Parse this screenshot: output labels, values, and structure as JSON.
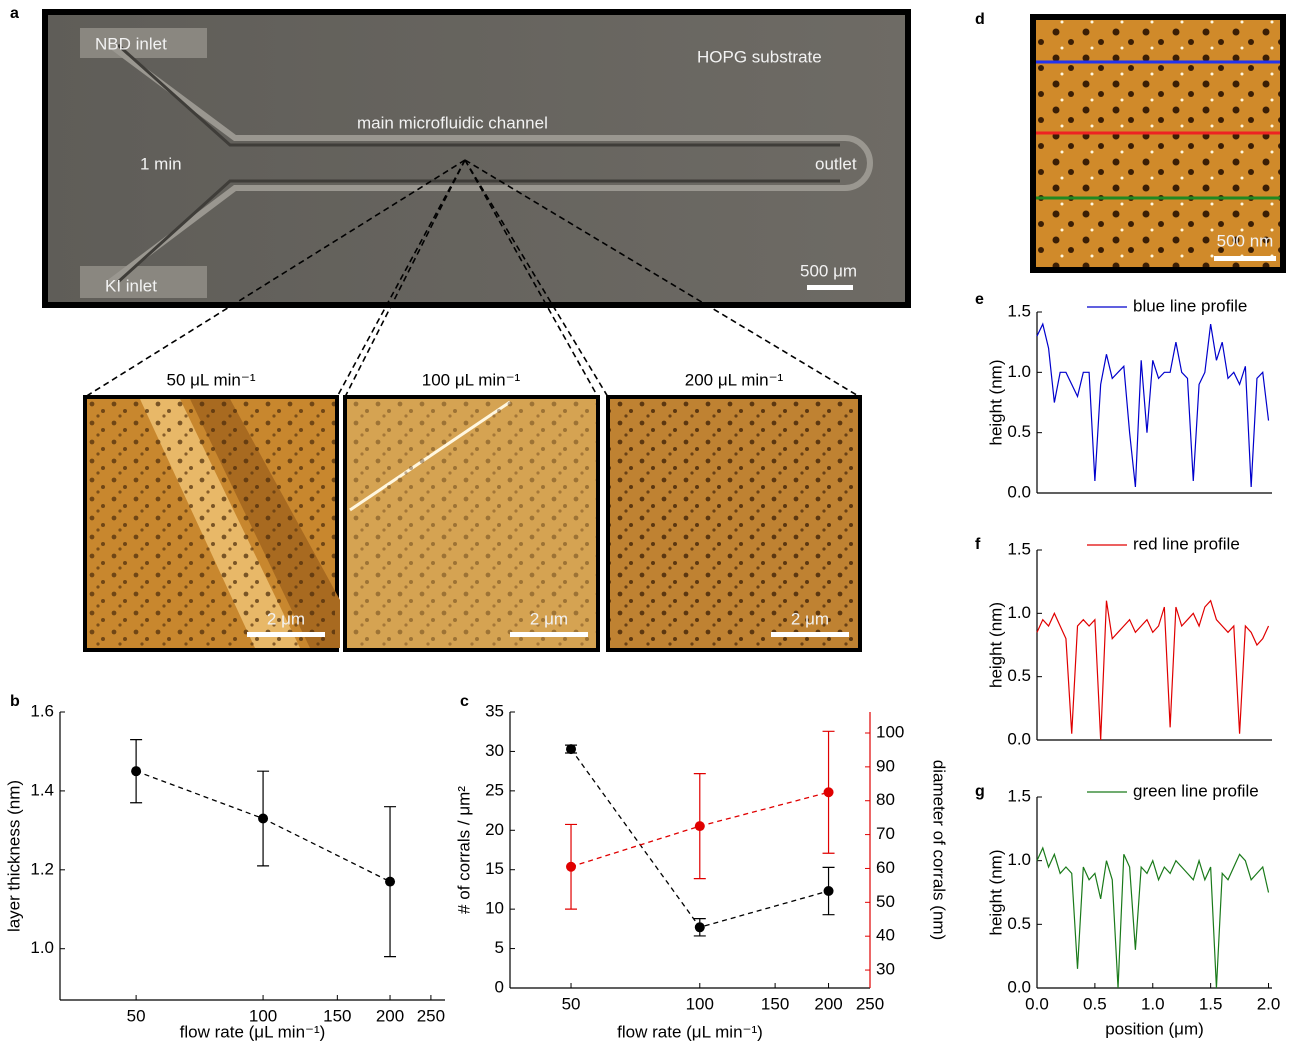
{
  "panels": {
    "letters": [
      "a",
      "b",
      "c",
      "d",
      "e",
      "f",
      "g"
    ],
    "a": {
      "nbd_inlet": "NBD inlet",
      "ki_inlet": "KI inlet",
      "substrate": "HOPG substrate",
      "channel": "main microfluidic channel",
      "time": "1 min",
      "outlet": "outlet",
      "scale": "500 μm"
    },
    "afm": [
      {
        "title": "50 μL min⁻¹",
        "scale": "2 μm"
      },
      {
        "title": "100 μL min⁻¹",
        "scale": "2 μm"
      },
      {
        "title": "200 μL min⁻¹",
        "scale": "2 μm"
      }
    ],
    "d": {
      "scale": "500 nm"
    }
  },
  "chart_data": [
    {
      "type": "line",
      "xlabel": "flow rate (μL min⁻¹)",
      "ylabel": "layer thickness (nm)",
      "xlog": true,
      "xlim": [
        33,
        270
      ],
      "xticks": [
        50,
        100,
        150,
        200,
        250
      ],
      "ylim": [
        0.87,
        1.6
      ],
      "yticks": [
        {
          "value": 1,
          "label": "1.0"
        },
        {
          "value": 1.2,
          "label": "1.2"
        },
        {
          "value": 1.4,
          "label": "1.4"
        },
        {
          "value": 1.6,
          "label": "1.6"
        }
      ],
      "x": [
        50,
        100,
        200
      ],
      "series": [
        {
          "color": "#000000",
          "values": [
            1.45,
            1.33,
            1.17
          ],
          "errors": [
            0.08,
            0.12,
            0.19
          ]
        }
      ]
    },
    {
      "type": "line",
      "xlabel": "flow rate (μL min⁻¹)",
      "ylabel": "# of corrals / μm²",
      "y2label": "diameter of corrals (nm)",
      "xlog": true,
      "xlim": [
        36,
        250
      ],
      "xticks": [
        50,
        100,
        150,
        200,
        250
      ],
      "ylim": [
        0,
        35
      ],
      "yticks": [
        0,
        5,
        10,
        15,
        20,
        25,
        30,
        35
      ],
      "y2lim": [
        24.7,
        106.2
      ],
      "y2ticks": [
        30,
        40,
        50,
        60,
        70,
        80,
        90,
        100
      ],
      "y2color": "#e00000",
      "x": [
        50,
        100,
        200
      ],
      "series": [
        {
          "color": "#000000",
          "values": [
            30.3,
            7.7,
            12.3
          ],
          "errors": [
            0.5,
            1.1,
            3.0
          ]
        },
        {
          "color": "#e00000",
          "axis": "y2",
          "values": [
            60.5,
            72.5,
            82.5
          ],
          "errors": [
            12.5,
            15.5,
            18
          ]
        }
      ]
    },
    {
      "type": "line",
      "ylabel": "height (nm)",
      "xlim": [
        0,
        2.03
      ],
      "ylim": [
        0,
        1.5
      ],
      "yticks": [
        {
          "value": 0,
          "label": "0.0"
        },
        {
          "value": 0.5,
          "label": "0.5"
        },
        {
          "value": 1,
          "label": "1.0"
        },
        {
          "value": 1.5,
          "label": "1.5"
        }
      ],
      "legend": "upper right",
      "x": [
        0,
        0.05,
        0.1,
        0.15,
        0.2,
        0.25,
        0.3,
        0.35,
        0.4,
        0.45,
        0.5,
        0.55,
        0.6,
        0.65,
        0.7,
        0.75,
        0.8,
        0.85,
        0.9,
        0.95,
        1,
        1.05,
        1.1,
        1.15,
        1.2,
        1.25,
        1.3,
        1.35,
        1.4,
        1.45,
        1.5,
        1.55,
        1.6,
        1.65,
        1.7,
        1.75,
        1.8,
        1.85,
        1.9,
        1.95,
        2
      ],
      "series": [
        {
          "name": "blue line profile",
          "color": "#0000cc",
          "values": [
            1.3,
            1.4,
            1.2,
            0.75,
            1.0,
            1.0,
            0.9,
            0.8,
            1.0,
            1.0,
            0.1,
            0.9,
            1.15,
            0.95,
            1.0,
            1.05,
            0.5,
            0.05,
            1.1,
            0.5,
            1.1,
            0.95,
            1.0,
            1.0,
            1.25,
            1.0,
            0.95,
            0.1,
            0.9,
            1.0,
            1.4,
            1.1,
            1.25,
            0.95,
            1.0,
            0.9,
            1.05,
            0.05,
            0.95,
            1.0,
            0.6
          ]
        }
      ]
    },
    {
      "type": "line",
      "ylabel": "height (nm)",
      "xlim": [
        0,
        2.03
      ],
      "ylim": [
        0,
        1.5
      ],
      "yticks": [
        {
          "value": 0,
          "label": "0.0"
        },
        {
          "value": 0.5,
          "label": "0.5"
        },
        {
          "value": 1,
          "label": "1.0"
        },
        {
          "value": 1.5,
          "label": "1.5"
        }
      ],
      "legend": "upper right",
      "x": [
        0,
        0.05,
        0.1,
        0.15,
        0.2,
        0.25,
        0.3,
        0.35,
        0.4,
        0.45,
        0.5,
        0.55,
        0.6,
        0.65,
        0.7,
        0.75,
        0.8,
        0.85,
        0.9,
        0.95,
        1,
        1.05,
        1.1,
        1.15,
        1.2,
        1.25,
        1.3,
        1.35,
        1.4,
        1.45,
        1.5,
        1.55,
        1.6,
        1.65,
        1.7,
        1.75,
        1.8,
        1.85,
        1.9,
        1.95,
        2
      ],
      "series": [
        {
          "name": "red line profile",
          "color": "#e00000",
          "values": [
            0.85,
            0.95,
            0.9,
            1.0,
            0.9,
            0.8,
            0.05,
            0.9,
            0.95,
            0.9,
            0.95,
            0.0,
            1.1,
            0.8,
            0.85,
            0.9,
            0.95,
            0.85,
            0.9,
            0.95,
            0.85,
            0.9,
            1.05,
            0.1,
            1.05,
            0.9,
            0.95,
            1.0,
            0.9,
            1.05,
            1.1,
            0.95,
            0.9,
            0.85,
            0.9,
            0.05,
            0.9,
            0.85,
            0.75,
            0.8,
            0.9
          ]
        }
      ]
    },
    {
      "type": "line",
      "ylabel": "height (nm)",
      "xlabel": "position (μm)",
      "xlim": [
        0,
        2.03
      ],
      "xticks": [
        {
          "value": 0,
          "label": "0.0"
        },
        {
          "value": 0.5,
          "label": "0.5"
        },
        {
          "value": 1,
          "label": "1.0"
        },
        {
          "value": 1.5,
          "label": "1.5"
        },
        {
          "value": 2,
          "label": "2.0"
        }
      ],
      "ylim": [
        0,
        1.5
      ],
      "yticks": [
        {
          "value": 0,
          "label": "0.0"
        },
        {
          "value": 0.5,
          "label": "0.5"
        },
        {
          "value": 1,
          "label": "1.0"
        },
        {
          "value": 1.5,
          "label": "1.5"
        }
      ],
      "legend": "upper right",
      "x": [
        0,
        0.05,
        0.1,
        0.15,
        0.2,
        0.25,
        0.3,
        0.35,
        0.4,
        0.45,
        0.5,
        0.55,
        0.6,
        0.65,
        0.7,
        0.75,
        0.8,
        0.85,
        0.9,
        0.95,
        1,
        1.05,
        1.1,
        1.15,
        1.2,
        1.25,
        1.3,
        1.35,
        1.4,
        1.45,
        1.5,
        1.55,
        1.6,
        1.65,
        1.7,
        1.75,
        1.8,
        1.85,
        1.9,
        1.95,
        2
      ],
      "series": [
        {
          "name": "green line profile",
          "color": "#1a7a1a",
          "values": [
            1.0,
            1.1,
            0.95,
            1.05,
            0.9,
            0.95,
            0.9,
            0.15,
            0.95,
            0.85,
            0.9,
            0.7,
            1.0,
            0.85,
            0.0,
            1.05,
            0.95,
            0.3,
            0.95,
            0.9,
            1.0,
            0.85,
            0.95,
            0.9,
            1.0,
            0.95,
            0.9,
            0.85,
            1.0,
            0.85,
            0.95,
            0.0,
            0.9,
            0.85,
            0.95,
            1.05,
            1.0,
            0.85,
            0.9,
            0.95,
            0.75
          ]
        }
      ]
    }
  ]
}
